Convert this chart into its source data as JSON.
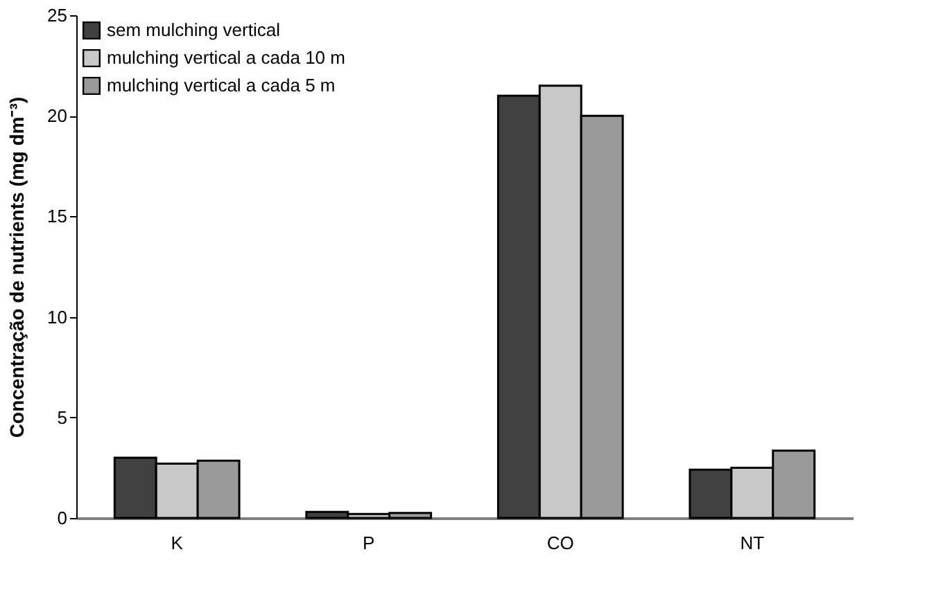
{
  "chart_data": {
    "type": "bar",
    "ylabel": "Concentração de nutrients (mg dm⁻³)",
    "categories": [
      "K",
      "P",
      "CO",
      "NT"
    ],
    "series": [
      {
        "name": "sem mulching vertical",
        "color": "#404040",
        "values": [
          3.0,
          0.3,
          21.0,
          2.4
        ]
      },
      {
        "name": "mulching vertical a cada 10 m",
        "color": "#c8c8c8",
        "values": [
          2.7,
          0.2,
          21.5,
          2.5
        ]
      },
      {
        "name": "mulching vertical a cada 5 m",
        "color": "#9a9a9a",
        "values": [
          2.85,
          0.25,
          20.0,
          3.35
        ]
      }
    ],
    "ylim": [
      0,
      25
    ],
    "yticks": [
      0,
      5,
      10,
      15,
      20,
      25
    ],
    "grid": false,
    "legend": "top left"
  }
}
